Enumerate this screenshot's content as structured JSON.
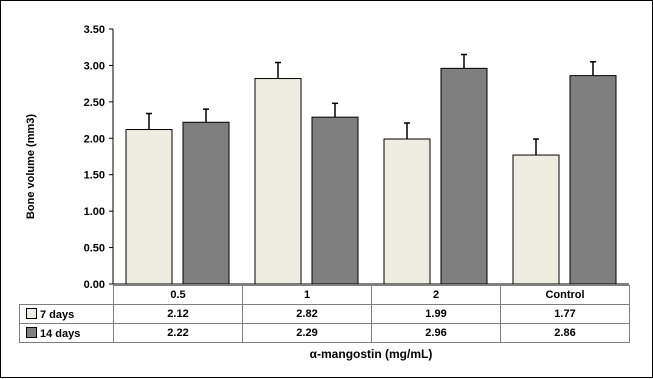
{
  "chart_data": {
    "type": "bar",
    "title": "",
    "xlabel": "α-mangostin (mg/mL)",
    "ylabel": "Bone volume (mm3)",
    "ylim": [
      0,
      3.5
    ],
    "yticks": [
      "0.00",
      "0.50",
      "1.00",
      "1.50",
      "2.00",
      "2.50",
      "3.00",
      "3.50"
    ],
    "ytick_values": [
      0,
      0.5,
      1,
      1.5,
      2,
      2.5,
      3,
      3.5
    ],
    "categories": [
      "0.5",
      "1",
      "2",
      "Control"
    ],
    "series": [
      {
        "name": "7 days",
        "values": [
          2.12,
          2.82,
          1.99,
          1.77
        ],
        "errors": [
          0.22,
          0.22,
          0.22,
          0.22
        ],
        "labels": [
          "2.12",
          "2.82",
          "1.99",
          "1.77"
        ],
        "color": "#efece1"
      },
      {
        "name": "14 days",
        "values": [
          2.22,
          2.29,
          2.96,
          2.86
        ],
        "errors": [
          0.18,
          0.19,
          0.19,
          0.19
        ],
        "labels": [
          "2.22",
          "2.29",
          "2.96",
          "2.86"
        ],
        "color": "#7f7f7f"
      }
    ],
    "grid": false,
    "legend": "data-table-left",
    "data_table": true
  }
}
